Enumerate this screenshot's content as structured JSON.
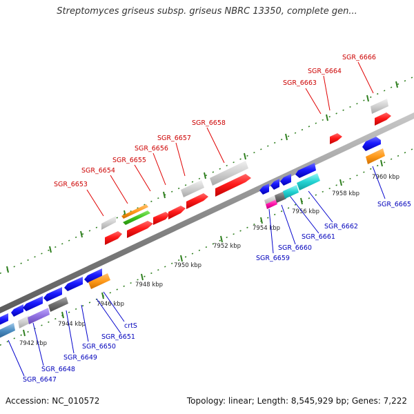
{
  "title": "Streptomyces griseus subsp. griseus NBRC 13350, complete gen...",
  "footer": {
    "accession": "Accession: NC_010572",
    "topology": "Topology: linear; Length: 8,545,929 bp; Genes: 7,222"
  },
  "colors": {
    "forward_gene": "#ff1a1a",
    "reverse_gene": "#1a1aff",
    "backbone": "#8a8a8a",
    "tick": "#2f7f1f",
    "label_top": "#cc0000",
    "label_bottom": "#0000bb"
  },
  "scale": {
    "unit": "kbp",
    "labels": [
      "7942 kbp",
      "7944 kbp",
      "7946 kbp",
      "7948 kbp",
      "7950 kbp",
      "7952 kbp",
      "7954 kbp",
      "7956 kbp",
      "7958 kbp",
      "7960 kbp"
    ]
  },
  "gene_labels_top": [
    "SGR_6653",
    "SGR_6654",
    "SGR_6655",
    "SGR_6656",
    "SGR_6657",
    "SGR_6658",
    "SGR_6663",
    "SGR_6664",
    "SGR_6666"
  ],
  "gene_labels_bottom": [
    "crtS",
    "SGR_6651",
    "SGR_6650",
    "SGR_6649",
    "SGR_6648",
    "SGR_6647",
    "SGR_6659",
    "SGR_6660",
    "SGR_6661",
    "SGR_6662",
    "SGR_6665"
  ]
}
